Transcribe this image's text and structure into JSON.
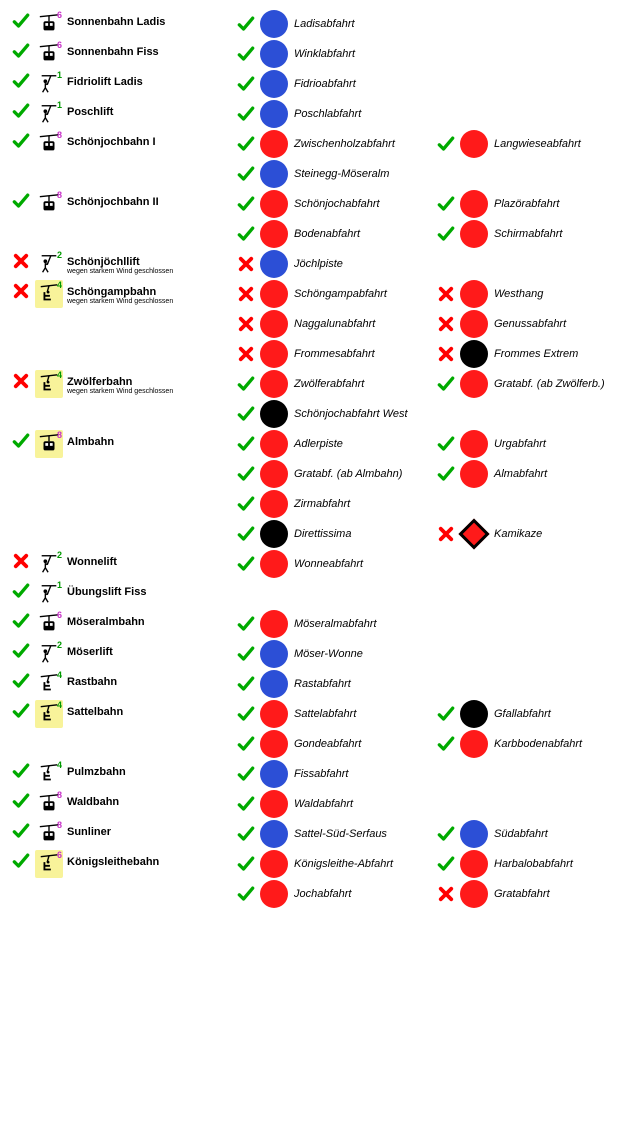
{
  "colors": {
    "open": "#00aa00",
    "closed": "#ff0000",
    "blue": "#2c4fd6",
    "red": "#ff1a1a",
    "black": "#000000",
    "yellow_bg": "#f8f39a",
    "cap_purple": "#c730c7",
    "cap_green": "#009900"
  },
  "rows": [
    {
      "lift": {
        "status": "open",
        "icon": "gondola",
        "cap": "6",
        "capcol": "purple",
        "name": "Sonnenbahn Ladis"
      },
      "p1": {
        "status": "open",
        "diff": "blue",
        "name": "Ladisabfahrt"
      }
    },
    {
      "lift": {
        "status": "open",
        "icon": "gondola",
        "cap": "6",
        "capcol": "purple",
        "name": "Sonnenbahn Fiss"
      },
      "p1": {
        "status": "open",
        "diff": "blue",
        "name": "Winklabfahrt"
      }
    },
    {
      "lift": {
        "status": "open",
        "icon": "drag",
        "cap": "1",
        "capcol": "green",
        "name": "Fidriolift Ladis"
      },
      "p1": {
        "status": "open",
        "diff": "blue",
        "name": "Fidrioabfahrt"
      }
    },
    {
      "lift": {
        "status": "open",
        "icon": "drag",
        "cap": "1",
        "capcol": "green",
        "name": "Poschlift"
      },
      "p1": {
        "status": "open",
        "diff": "blue",
        "name": "Poschlabfahrt"
      }
    },
    {
      "lift": {
        "status": "open",
        "icon": "gondola",
        "cap": "8",
        "capcol": "purple",
        "name": "Schönjochbahn I"
      },
      "p1": {
        "status": "open",
        "diff": "red",
        "name": "Zwischenholzabfahrt"
      },
      "p2": {
        "status": "open",
        "diff": "red",
        "name": "Langwieseabfahrt"
      }
    },
    {
      "p1": {
        "status": "open",
        "diff": "blue",
        "name": "Steinegg-Möseralm"
      }
    },
    {
      "lift": {
        "status": "open",
        "icon": "gondola",
        "cap": "8",
        "capcol": "purple",
        "name": "Schönjochbahn II"
      },
      "p1": {
        "status": "open",
        "diff": "red",
        "name": "Schönjochabfahrt"
      },
      "p2": {
        "status": "open",
        "diff": "red",
        "name": "Plazörabfahrt"
      }
    },
    {
      "p1": {
        "status": "open",
        "diff": "red",
        "name": "Bodenabfahrt"
      },
      "p2": {
        "status": "open",
        "diff": "red",
        "name": "Schirmabfahrt"
      }
    },
    {
      "lift": {
        "status": "closed",
        "icon": "drag",
        "cap": "2",
        "capcol": "green",
        "name": "Schönjöchllift",
        "reason": "wegen starkem Wind geschlossen"
      },
      "p1": {
        "status": "closed",
        "diff": "blue",
        "name": "Jöchlpiste"
      }
    },
    {
      "lift": {
        "status": "closed",
        "icon": "chair",
        "yellow": true,
        "cap": "4",
        "capcol": "green",
        "name": "Schöngampbahn",
        "reason": "wegen starkem Wind geschlossen"
      },
      "p1": {
        "status": "closed",
        "diff": "red",
        "name": "Schöngampabfahrt"
      },
      "p2": {
        "status": "closed",
        "diff": "red",
        "name": "Westhang"
      }
    },
    {
      "p1": {
        "status": "closed",
        "diff": "red",
        "name": "Naggalunabfahrt"
      },
      "p2": {
        "status": "closed",
        "diff": "red",
        "name": "Genussabfahrt"
      }
    },
    {
      "p1": {
        "status": "closed",
        "diff": "red",
        "name": "Frommesabfahrt"
      },
      "p2": {
        "status": "closed",
        "diff": "black",
        "name": "Frommes Extrem"
      }
    },
    {
      "lift": {
        "status": "closed",
        "icon": "chair",
        "yellow": true,
        "cap": "4",
        "capcol": "green",
        "name": "Zwölferbahn",
        "reason": "wegen starkem Wind geschlossen"
      },
      "p1": {
        "status": "open",
        "diff": "red",
        "name": "Zwölferabfahrt"
      },
      "p2": {
        "status": "open",
        "diff": "red",
        "name": "Gratabf. (ab Zwölferb.)"
      }
    },
    {
      "p1": {
        "status": "open",
        "diff": "black",
        "name": "Schönjochabfahrt West"
      }
    },
    {
      "lift": {
        "status": "open",
        "icon": "gondola",
        "yellow": true,
        "cap": "8",
        "capcol": "purple",
        "name": "Almbahn"
      },
      "p1": {
        "status": "open",
        "diff": "red",
        "name": "Adlerpiste"
      },
      "p2": {
        "status": "open",
        "diff": "red",
        "name": "Urgabfahrt"
      }
    },
    {
      "p1": {
        "status": "open",
        "diff": "red",
        "name": "Gratabf. (ab Almbahn)"
      },
      "p2": {
        "status": "open",
        "diff": "red",
        "name": "Almabfahrt"
      }
    },
    {
      "p1": {
        "status": "open",
        "diff": "red",
        "name": "Zirmabfahrt"
      }
    },
    {
      "p1": {
        "status": "open",
        "diff": "black",
        "name": "Direttissima"
      },
      "p2": {
        "status": "closed",
        "diff": "diamond",
        "name": "Kamikaze"
      }
    },
    {
      "lift": {
        "status": "closed",
        "icon": "drag",
        "cap": "2",
        "capcol": "green",
        "name": "Wonnelift"
      },
      "p1": {
        "status": "open",
        "diff": "red",
        "name": "Wonneabfahrt"
      }
    },
    {
      "lift": {
        "status": "open",
        "icon": "drag",
        "cap": "1",
        "capcol": "green",
        "name": "Übungslift Fiss"
      }
    },
    {
      "lift": {
        "status": "open",
        "icon": "gondola",
        "cap": "6",
        "capcol": "purple",
        "name": "Möseralmbahn"
      },
      "p1": {
        "status": "open",
        "diff": "red",
        "name": "Möseralmabfahrt"
      }
    },
    {
      "lift": {
        "status": "open",
        "icon": "drag",
        "cap": "2",
        "capcol": "green",
        "name": "Möserlift"
      },
      "p1": {
        "status": "open",
        "diff": "blue",
        "name": "Möser-Wonne"
      }
    },
    {
      "lift": {
        "status": "open",
        "icon": "chair",
        "cap": "4",
        "capcol": "green",
        "name": "Rastbahn"
      },
      "p1": {
        "status": "open",
        "diff": "blue",
        "name": "Rastabfahrt"
      }
    },
    {
      "lift": {
        "status": "open",
        "icon": "chair",
        "yellow": true,
        "cap": "4",
        "capcol": "green",
        "name": "Sattelbahn"
      },
      "p1": {
        "status": "open",
        "diff": "red",
        "name": "Sattelabfahrt"
      },
      "p2": {
        "status": "open",
        "diff": "black",
        "name": "Gfallabfahrt"
      }
    },
    {
      "p1": {
        "status": "open",
        "diff": "red",
        "name": "Gondeabfahrt"
      },
      "p2": {
        "status": "open",
        "diff": "red",
        "name": "Karbbodenabfahrt"
      }
    },
    {
      "lift": {
        "status": "open",
        "icon": "chair",
        "cap": "4",
        "capcol": "green",
        "name": "Pulmzbahn"
      },
      "p1": {
        "status": "open",
        "diff": "blue",
        "name": "Fissabfahrt"
      }
    },
    {
      "lift": {
        "status": "open",
        "icon": "gondola",
        "cap": "8",
        "capcol": "purple",
        "name": "Waldbahn"
      },
      "p1": {
        "status": "open",
        "diff": "red",
        "name": "Waldabfahrt"
      }
    },
    {
      "lift": {
        "status": "open",
        "icon": "gondola",
        "cap": "8",
        "capcol": "purple",
        "name": "Sunliner"
      },
      "p1": {
        "status": "open",
        "diff": "blue",
        "name": "Sattel-Süd-Serfaus"
      },
      "p2": {
        "status": "open",
        "diff": "blue",
        "name": "Südabfahrt"
      }
    },
    {
      "lift": {
        "status": "open",
        "icon": "chair",
        "yellow": true,
        "cap": "6",
        "capcol": "purple",
        "name": "Königsleithebahn"
      },
      "p1": {
        "status": "open",
        "diff": "red",
        "name": "Königsleithe-Abfahrt"
      },
      "p2": {
        "status": "open",
        "diff": "red",
        "name": "Harbalobabfahrt"
      }
    },
    {
      "p1": {
        "status": "open",
        "diff": "red",
        "name": "Jochabfahrt"
      },
      "p2": {
        "status": "closed",
        "diff": "red",
        "name": "Gratabfahrt"
      }
    }
  ]
}
